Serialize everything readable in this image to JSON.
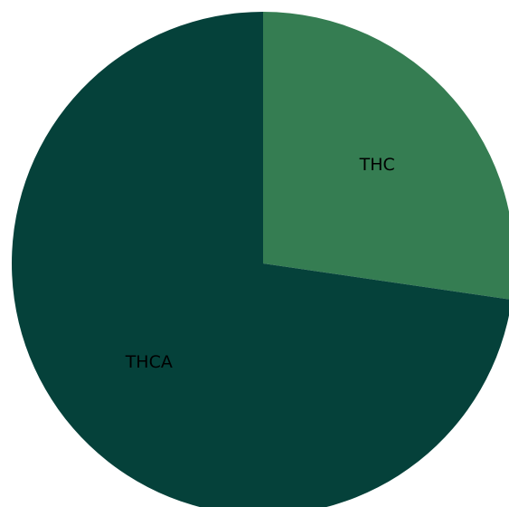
{
  "chart_data": {
    "type": "pie",
    "categories": [
      "THC",
      "THCA"
    ],
    "values": [
      27.3,
      72.7
    ],
    "colors": [
      "#357d52",
      "#05413a"
    ],
    "start_angle_deg": 90,
    "direction": "clockwise",
    "title": "",
    "legend": "none"
  }
}
